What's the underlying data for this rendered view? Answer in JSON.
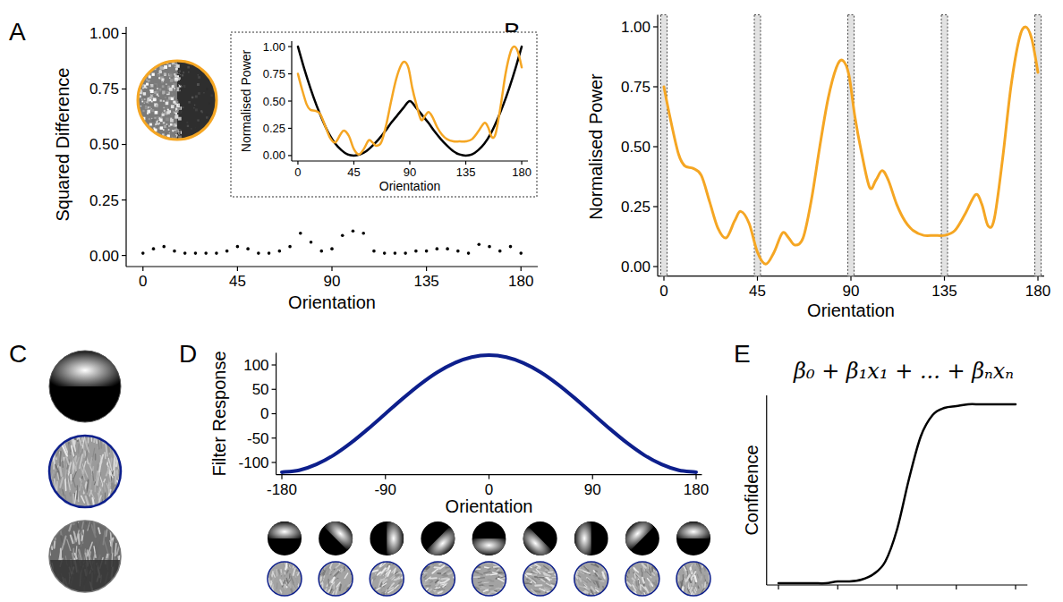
{
  "panel_labels": [
    "A",
    "B",
    "C",
    "D",
    "E"
  ],
  "chart_data": [
    {
      "type": "scatter",
      "x_label": "Orientation",
      "y_label": "Squared Difference",
      "x": [
        0,
        5,
        10,
        15,
        20,
        25,
        30,
        35,
        40,
        45,
        50,
        55,
        60,
        65,
        70,
        75,
        80,
        85,
        90,
        95,
        100,
        105,
        110,
        115,
        120,
        125,
        130,
        135,
        140,
        145,
        150,
        155,
        160,
        165,
        170,
        175,
        180
      ],
      "values": [
        0.01,
        0.03,
        0.04,
        0.02,
        0.01,
        0.01,
        0.01,
        0.01,
        0.02,
        0.04,
        0.03,
        0.01,
        0.01,
        0.02,
        0.04,
        0.1,
        0.06,
        0.02,
        0.03,
        0.09,
        0.11,
        0.1,
        0.02,
        0.01,
        0.01,
        0.01,
        0.02,
        0.02,
        0.03,
        0.03,
        0.02,
        0.01,
        0.05,
        0.04,
        0.02,
        0.04,
        0.01
      ],
      "color": "#000000",
      "marker": "dot",
      "xlim": [
        -8,
        188
      ],
      "ylim": [
        -0.05,
        1.03
      ],
      "xticks": [
        0,
        45,
        90,
        135,
        180
      ],
      "yticks": [
        {
          "value": 0,
          "label": "0.00"
        },
        0.25,
        {
          "value": 0.5,
          "label": "0.50"
        },
        0.75,
        {
          "value": 1,
          "label": "1.00"
        }
      ]
    },
    {
      "type": "line",
      "x_label": "Orientation",
      "y_label": "Normalised Power",
      "series": [
        {
          "color": "#000000",
          "x": [
            0,
            5,
            10,
            15,
            20,
            25,
            30,
            35,
            40,
            45,
            50,
            55,
            60,
            65,
            70,
            75,
            80,
            85,
            90,
            95,
            100,
            105,
            110,
            115,
            120,
            125,
            130,
            135,
            140,
            145,
            150,
            155,
            160,
            165,
            170,
            175,
            180
          ],
          "values": [
            1.0,
            0.8,
            0.62,
            0.46,
            0.32,
            0.2,
            0.11,
            0.05,
            0.01,
            0.0,
            0.01,
            0.04,
            0.09,
            0.15,
            0.22,
            0.3,
            0.37,
            0.44,
            0.5,
            0.44,
            0.37,
            0.3,
            0.22,
            0.15,
            0.09,
            0.04,
            0.01,
            0.0,
            0.01,
            0.05,
            0.11,
            0.2,
            0.32,
            0.46,
            0.62,
            0.8,
            1.0
          ]
        },
        {
          "color": "#f5a623",
          "x": [
            0,
            3,
            7,
            10,
            14,
            18,
            22,
            26,
            30,
            34,
            37,
            41,
            45,
            49,
            53,
            57,
            60,
            63,
            67,
            71,
            75,
            79,
            83,
            86,
            89,
            92,
            95,
            99,
            102,
            105,
            108,
            112,
            116,
            120,
            125,
            130,
            135,
            140,
            145,
            150,
            153,
            156,
            159,
            163,
            167,
            171,
            174,
            177,
            180
          ],
          "values": [
            0.75,
            0.62,
            0.47,
            0.42,
            0.41,
            0.38,
            0.27,
            0.16,
            0.12,
            0.19,
            0.23,
            0.18,
            0.06,
            0.01,
            0.06,
            0.14,
            0.12,
            0.09,
            0.12,
            0.28,
            0.5,
            0.7,
            0.83,
            0.86,
            0.8,
            0.62,
            0.48,
            0.33,
            0.36,
            0.4,
            0.36,
            0.26,
            0.19,
            0.15,
            0.13,
            0.13,
            0.13,
            0.15,
            0.22,
            0.3,
            0.26,
            0.17,
            0.2,
            0.45,
            0.75,
            0.95,
            1.0,
            0.95,
            0.81
          ]
        }
      ],
      "xlim": [
        -5,
        185
      ],
      "ylim": [
        -0.05,
        1.05
      ],
      "xticks": [
        0,
        45,
        90,
        135,
        180
      ],
      "yticks": [
        {
          "value": 0,
          "label": "0.00"
        },
        0.25,
        {
          "value": 0.5,
          "label": "0.50"
        },
        0.75,
        {
          "value": 1,
          "label": "1.00"
        }
      ]
    },
    {
      "type": "line",
      "x_label": "Orientation",
      "y_label": "Normalised Power",
      "x": [
        0,
        3,
        7,
        10,
        14,
        18,
        22,
        26,
        30,
        34,
        37,
        41,
        45,
        49,
        53,
        57,
        60,
        63,
        67,
        71,
        75,
        79,
        83,
        86,
        89,
        92,
        95,
        99,
        102,
        105,
        108,
        112,
        116,
        120,
        125,
        130,
        135,
        140,
        145,
        150,
        153,
        156,
        159,
        163,
        167,
        171,
        174,
        177,
        180
      ],
      "values": [
        0.75,
        0.62,
        0.47,
        0.42,
        0.41,
        0.38,
        0.27,
        0.16,
        0.12,
        0.19,
        0.23,
        0.18,
        0.06,
        0.01,
        0.06,
        0.14,
        0.12,
        0.09,
        0.12,
        0.28,
        0.5,
        0.7,
        0.83,
        0.86,
        0.8,
        0.62,
        0.48,
        0.33,
        0.36,
        0.4,
        0.36,
        0.26,
        0.19,
        0.15,
        0.13,
        0.13,
        0.13,
        0.15,
        0.22,
        0.3,
        0.26,
        0.17,
        0.2,
        0.45,
        0.75,
        0.95,
        1.0,
        0.95,
        0.81
      ],
      "color": "#f5a623",
      "bands": [
        0,
        45,
        90,
        135,
        180
      ],
      "xlim": [
        -3,
        183
      ],
      "ylim": [
        -0.04,
        1.05
      ],
      "xticks": [
        0,
        45,
        90,
        135,
        180
      ],
      "yticks": [
        {
          "value": 0,
          "label": "0.00"
        },
        0.25,
        {
          "value": 0.5,
          "label": "0.50"
        },
        0.75,
        {
          "value": 1,
          "label": "1.00"
        }
      ]
    },
    {
      "type": "line",
      "x_label": "Orientation",
      "y_label": "Filter Response",
      "x": [
        -180,
        -165,
        -150,
        -135,
        -120,
        -105,
        -90,
        -75,
        -60,
        -45,
        -30,
        -15,
        0,
        15,
        30,
        45,
        60,
        75,
        90,
        105,
        120,
        135,
        150,
        165,
        180
      ],
      "values": [
        -120,
        -116,
        -104,
        -85,
        -60,
        -31,
        0,
        31,
        60,
        85,
        104,
        116,
        120,
        116,
        104,
        85,
        60,
        31,
        0,
        -31,
        -60,
        -85,
        -104,
        -116,
        -120
      ],
      "color": "#0d1f8c",
      "xlim": [
        -185,
        185
      ],
      "ylim": [
        -125,
        125
      ],
      "xticks": [
        -180,
        -90,
        0,
        90,
        180
      ],
      "yticks": [
        -100,
        -50,
        0,
        50,
        100
      ]
    },
    {
      "type": "line",
      "y_label": "Confidence",
      "annotation": "β₀ + β₁x₁ + ... + βₙxₙ",
      "x": [
        0,
        0.5,
        1,
        1.5,
        2,
        2.5,
        3,
        3.5,
        4,
        4.5,
        5,
        5.5,
        6,
        6.5,
        7,
        7.5,
        8,
        8.5,
        9,
        9.5,
        10
      ],
      "values": [
        0,
        0,
        0,
        0,
        0,
        0.01,
        0.01,
        0.02,
        0.05,
        0.12,
        0.3,
        0.58,
        0.82,
        0.94,
        0.98,
        0.99,
        1,
        1,
        1,
        1,
        1
      ],
      "color": "#000000",
      "tick_labels": false,
      "xlim": [
        -0.5,
        10.5
      ],
      "ylim": [
        -0.01,
        1.05
      ],
      "xticks": [
        0,
        2.5,
        5,
        7.5,
        10
      ]
    }
  ]
}
